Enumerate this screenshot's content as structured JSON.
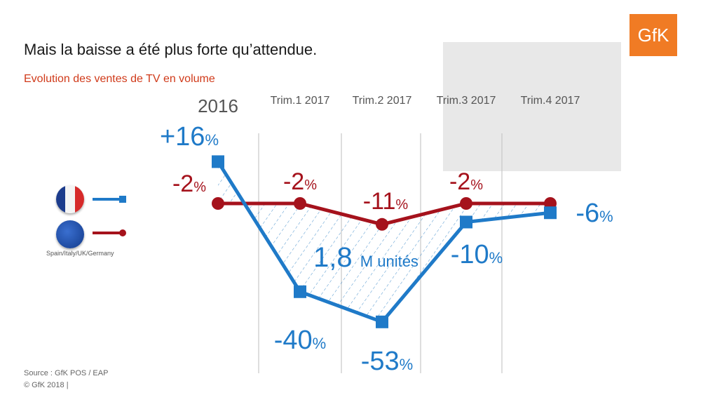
{
  "title": "Mais la baisse a été plus forte qu’attendue.",
  "subtitle": "Evolution des ventes de TV en volume",
  "logo": "GfK",
  "legend": {
    "caption": "Spain/Italy/UK/Germany"
  },
  "annotation": {
    "value": "1,8",
    "unit": "M unités"
  },
  "source": [
    "Source : GfK POS / EAP",
    "© GfK 2018 |"
  ],
  "colors": {
    "france": "#1f7ac8",
    "eap": "#a5121c",
    "hatch": "#2a7fc4",
    "grid": "#c8c8c8",
    "period_text": "#555555"
  },
  "icons": {
    "france_flag": "france-flag-icon",
    "eu_flag": "eu-flag-icon"
  },
  "chart_data": {
    "type": "line",
    "categories": [
      "2016",
      "Trim.1 2017",
      "Trim.2 2017",
      "Trim.3 2017",
      "Trim.4 2017"
    ],
    "unit": "%",
    "series": [
      {
        "key": "france",
        "values": [
          16,
          -40,
          -53,
          -10,
          -6
        ],
        "labels": [
          "+16",
          "-40",
          "-53",
          "-10",
          "-6"
        ]
      },
      {
        "key": "eap",
        "values": [
          -2,
          -2,
          -11,
          -2,
          null
        ],
        "labels": [
          "-2",
          "-2",
          "-11",
          "-2",
          ""
        ]
      }
    ]
  }
}
